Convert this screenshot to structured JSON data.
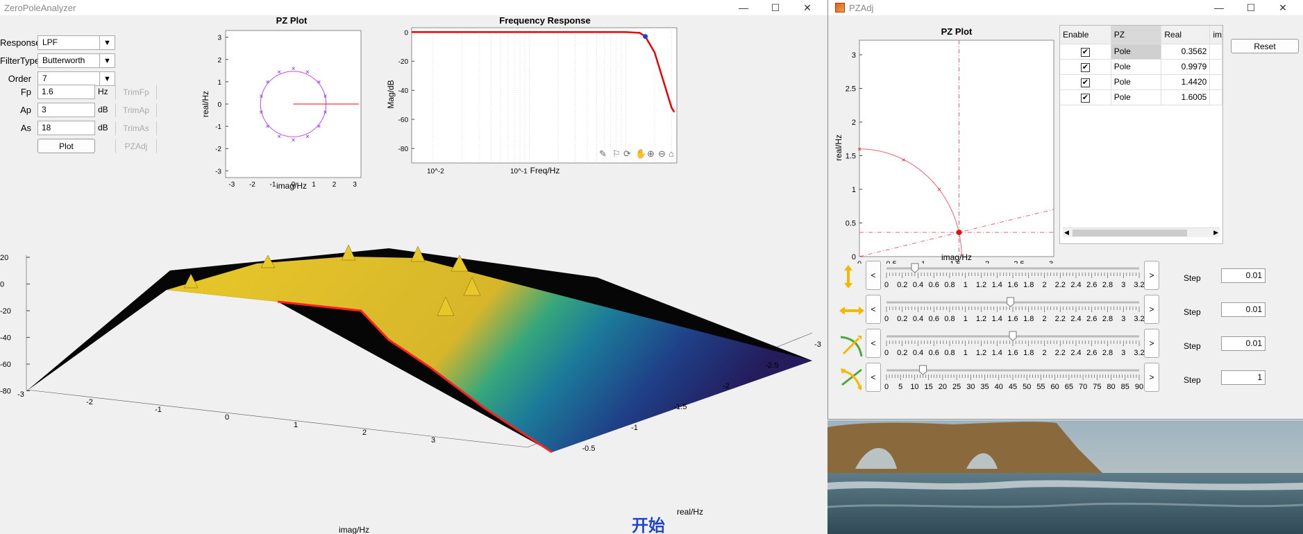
{
  "main": {
    "title": "ZeroPoleAnalyzer",
    "controls": {
      "response_label": "Response",
      "response_value": "LPF",
      "filtertype_label": "FilterType",
      "filtertype_value": "Butterworth",
      "order_label": "Order",
      "order_value": "7",
      "fp_label": "Fp",
      "fp_value": "1.6",
      "fp_unit": "Hz",
      "trimfp": "TrimFp",
      "ap_label": "Ap",
      "ap_value": "3",
      "ap_unit": "dB",
      "trimap": "TrimAp",
      "as_label": "As",
      "as_value": "18",
      "as_unit": "dB",
      "trimas": "TrimAs",
      "plot_button": "Plot",
      "pzadj_button": "PZAdj"
    },
    "subtitle_text": "开始"
  },
  "pzadj": {
    "title": "PZAdj",
    "reset_button": "Reset",
    "table_headers": [
      "Enable",
      "PZ",
      "Real",
      "im"
    ],
    "table_rows": [
      {
        "enabled": true,
        "pz": "Pole",
        "real": "0.3562"
      },
      {
        "enabled": true,
        "pz": "Pole",
        "real": "0.9979"
      },
      {
        "enabled": true,
        "pz": "Pole",
        "real": "1.4420"
      },
      {
        "enabled": true,
        "pz": "Pole",
        "real": "1.6005"
      }
    ],
    "step_label": "Step",
    "sliders": [
      {
        "icon": "vertical-arrow-icon",
        "ticks": [
          "0",
          "0.2",
          "0.4",
          "0.6",
          "0.8",
          "1",
          "1.2",
          "1.4",
          "1.6",
          "1.8",
          "2",
          "2.2",
          "2.4",
          "2.6",
          "2.8",
          "3",
          "3.2"
        ],
        "value": 0.36,
        "max": 3.2,
        "step": "0.01"
      },
      {
        "icon": "horizontal-arrow-icon",
        "ticks": [
          "0",
          "0.2",
          "0.4",
          "0.6",
          "0.8",
          "1",
          "1.2",
          "1.4",
          "1.6",
          "1.8",
          "2",
          "2.2",
          "2.4",
          "2.6",
          "2.8",
          "3",
          "3.2"
        ],
        "value": 1.57,
        "max": 3.2,
        "step": "0.01"
      },
      {
        "icon": "radius-arc-icon",
        "ticks": [
          "0",
          "0.2",
          "0.4",
          "0.6",
          "0.8",
          "1",
          "1.2",
          "1.4",
          "1.6",
          "1.8",
          "2",
          "2.2",
          "2.4",
          "2.6",
          "2.8",
          "3",
          "3.2"
        ],
        "value": 1.6,
        "max": 3.2,
        "step": "0.01"
      },
      {
        "icon": "angle-arc-icon",
        "ticks": [
          "0",
          "5",
          "10",
          "15",
          "20",
          "25",
          "30",
          "35",
          "40",
          "45",
          "50",
          "55",
          "60",
          "65",
          "70",
          "75",
          "80",
          "85",
          "90"
        ],
        "value": 13,
        "max": 90,
        "step": "1"
      }
    ]
  },
  "chart_data": [
    {
      "type": "scatter",
      "title": "PZ Plot",
      "xlabel": "imag/Hz",
      "ylabel": "real/Hz",
      "xlim": [
        -3,
        3
      ],
      "ylim": [
        -3,
        3
      ],
      "xticks": [
        "-3",
        "-2",
        "-1",
        "0",
        "1",
        "2",
        "3"
      ],
      "yticks": [
        "3",
        "2",
        "1",
        "0",
        "-1",
        "-2",
        "-3"
      ],
      "poles_note": "14 poles on circle radius 1.6",
      "poles": [
        [
          0,
          1.6
        ],
        [
          0.69,
          1.44
        ],
        [
          1.25,
          1.0
        ],
        [
          1.56,
          0.36
        ],
        [
          1.56,
          -0.36
        ],
        [
          1.25,
          -1.0
        ],
        [
          0.69,
          -1.44
        ],
        [
          0,
          -1.6
        ],
        [
          -0.69,
          -1.44
        ],
        [
          -1.25,
          -1.0
        ],
        [
          -1.56,
          -0.36
        ],
        [
          -1.56,
          0.36
        ],
        [
          -1.25,
          1.0
        ],
        [
          -0.69,
          1.44
        ]
      ],
      "line": [
        [
          0,
          0
        ],
        [
          3.2,
          0
        ]
      ]
    },
    {
      "type": "line",
      "title": "Frequency Response",
      "xlabel": "Freq/Hz",
      "ylabel": "Mag/dB",
      "xscale": "log",
      "yticks": [
        "0",
        "-20",
        "-40",
        "-60",
        "-80"
      ],
      "xticks": [
        "10^-2",
        "10^-1"
      ],
      "series": [
        {
          "x": [
            0.006,
            0.1,
            1.0,
            1.4,
            1.6,
            2.0,
            3.0,
            3.2
          ],
          "y": [
            0,
            0,
            0,
            -0.5,
            -3,
            -14,
            -52,
            -55
          ]
        }
      ],
      "marker": {
        "x": 1.6,
        "y": -3
      }
    },
    {
      "type": "line",
      "title": "PZ Plot",
      "xlabel": "imag/Hz",
      "ylabel": "real/Hz",
      "xlim": [
        0,
        3.2
      ],
      "ylim": [
        0,
        3.2
      ],
      "xticks": [
        "0",
        "0.5",
        "1",
        "1.5",
        "2",
        "2.5",
        "3"
      ],
      "yticks": [
        "3",
        "2.5",
        "2",
        "1.5",
        "1",
        "0.5",
        "0"
      ],
      "poles": [
        [
          0,
          1.6
        ],
        [
          0.69,
          1.44
        ],
        [
          1.25,
          1.0
        ],
        [
          1.56,
          0.36
        ]
      ],
      "selected": [
        1.56,
        0.36
      ]
    },
    {
      "type": "surface",
      "xlabel": "imag/Hz",
      "ylabel": "real/Hz",
      "zticks": [
        "20",
        "0",
        "-20",
        "-40",
        "-60",
        "-80"
      ],
      "xticks": [
        "-3",
        "-2",
        "-1",
        "0",
        "1",
        "2",
        "3"
      ],
      "yticks": [
        "-3",
        "-2.5",
        "-2",
        "-1.5",
        "-1",
        "-0.5"
      ]
    }
  ]
}
